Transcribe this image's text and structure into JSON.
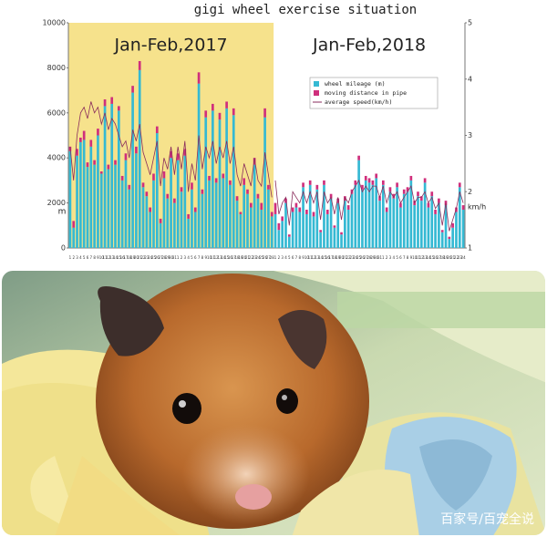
{
  "chart_data": [
    {
      "type": "bar",
      "title": "gigi wheel exercise situation",
      "subtitle": "Jan-Feb,2017",
      "background": "#f6e28c",
      "stacked": true,
      "grid": false,
      "ylabel": "m",
      "ylim": [
        0,
        10000
      ],
      "yticks": [
        0,
        2000,
        4000,
        6000,
        8000,
        10000
      ],
      "y2lim": [
        1,
        5
      ],
      "categories": [
        "1",
        "2",
        "3",
        "4",
        "5",
        "6",
        "7",
        "8",
        "9",
        "10",
        "11",
        "12",
        "13",
        "14",
        "15",
        "16",
        "17",
        "18",
        "19",
        "20",
        "21",
        "22",
        "23",
        "24",
        "25",
        "26",
        "27",
        "28",
        "29",
        "30",
        "31",
        "1",
        "2",
        "3",
        "4",
        "5",
        "6",
        "7",
        "8",
        "9",
        "10",
        "11",
        "12",
        "13",
        "14",
        "15",
        "16",
        "17",
        "18",
        "19",
        "20",
        "21",
        "22",
        "23",
        "24",
        "25",
        "26",
        "27",
        "28"
      ],
      "series": [
        {
          "name": "wheel mileage (m)",
          "color": "#35b9d3",
          "values": [
            4300,
            900,
            4100,
            4700,
            4800,
            3600,
            4500,
            3700,
            5000,
            3300,
            6300,
            3500,
            6400,
            3700,
            6100,
            3000,
            3900,
            2600,
            6900,
            4200,
            7900,
            2700,
            2300,
            1600,
            3000,
            5100,
            1100,
            3100,
            2200,
            4000,
            2000,
            3900,
            2500,
            4100,
            1300,
            2600,
            1600,
            7300,
            2400,
            5800,
            3000,
            6100,
            2900,
            5700,
            3100,
            6200,
            2800,
            5900,
            2100,
            1500,
            2800,
            2400,
            1800,
            3700,
            2200,
            1700,
            5800,
            2600,
            1400
          ]
        },
        {
          "name": "moving distance in pipe",
          "color": "#cf2f7c",
          "values": [
            200,
            300,
            300,
            200,
            400,
            200,
            300,
            200,
            300,
            100,
            300,
            200,
            300,
            200,
            200,
            200,
            300,
            200,
            300,
            300,
            400,
            200,
            200,
            200,
            300,
            300,
            200,
            300,
            200,
            300,
            200,
            300,
            200,
            300,
            200,
            300,
            200,
            500,
            200,
            300,
            200,
            300,
            200,
            300,
            200,
            300,
            200,
            300,
            200,
            100,
            300,
            200,
            200,
            300,
            200,
            300,
            400,
            200,
            200
          ]
        },
        {
          "name": "average speed(km/h)",
          "color": "#8a2d5c",
          "axis": "y2",
          "values": [
            2.8,
            2.2,
            3.0,
            3.4,
            3.5,
            3.3,
            3.6,
            3.4,
            3.5,
            3.2,
            3.4,
            3.1,
            3.3,
            3.2,
            3.0,
            2.8,
            2.9,
            2.6,
            3.1,
            2.9,
            3.2,
            2.7,
            2.5,
            2.3,
            2.6,
            2.9,
            2.1,
            2.6,
            2.4,
            2.8,
            2.3,
            2.8,
            2.4,
            2.9,
            2.0,
            2.5,
            2.2,
            3.0,
            2.4,
            2.8,
            2.6,
            2.9,
            2.5,
            2.8,
            2.6,
            2.9,
            2.5,
            2.8,
            2.3,
            2.1,
            2.5,
            2.3,
            2.1,
            2.6,
            2.2,
            2.1,
            2.7,
            2.3,
            1.9
          ]
        }
      ]
    },
    {
      "type": "bar",
      "subtitle": "Jan-Feb,2018",
      "stacked": true,
      "grid": false,
      "y2label": "km/h",
      "ylim": [
        0,
        10000
      ],
      "y2lim": [
        1,
        5
      ],
      "y2ticks": [
        1,
        2,
        3,
        4,
        5
      ],
      "legend": "upper right",
      "categories": [
        "1",
        "2",
        "3",
        "4",
        "5",
        "6",
        "7",
        "8",
        "9",
        "10",
        "11",
        "12",
        "13",
        "14",
        "15",
        "16",
        "17",
        "18",
        "19",
        "20",
        "21",
        "22",
        "23",
        "24",
        "25",
        "26",
        "27",
        "28",
        "29",
        "30",
        "31",
        "1",
        "2",
        "3",
        "4",
        "5",
        "6",
        "7",
        "8",
        "9",
        "10",
        "11",
        "12",
        "13",
        "14",
        "15",
        "16",
        "17",
        "18",
        "19",
        "20",
        "21",
        "22",
        "23",
        "24"
      ],
      "series": [
        {
          "name": "wheel mileage (m)",
          "color": "#35b9d3",
          "values": [
            1500,
            800,
            1200,
            2000,
            500,
            1600,
            1800,
            1600,
            2700,
            1500,
            2800,
            1400,
            2600,
            700,
            2800,
            1500,
            2200,
            900,
            2000,
            600,
            2100,
            1700,
            2400,
            2800,
            3900,
            2600,
            3000,
            2900,
            2800,
            3100,
            2100,
            2800,
            1600,
            2500,
            2200,
            2700,
            1800,
            2400,
            2500,
            3000,
            1900,
            2300,
            2100,
            2900,
            1800,
            2300,
            1500,
            2000,
            700,
            1900,
            400,
            900,
            1600,
            2700,
            1700
          ]
        },
        {
          "name": "moving distance in pipe",
          "color": "#cf2f7c",
          "values": [
            500,
            300,
            200,
            200,
            100,
            200,
            200,
            200,
            200,
            200,
            200,
            200,
            200,
            100,
            200,
            200,
            200,
            100,
            200,
            100,
            200,
            200,
            200,
            200,
            200,
            200,
            200,
            200,
            200,
            200,
            200,
            200,
            200,
            200,
            200,
            200,
            200,
            200,
            200,
            200,
            200,
            200,
            200,
            200,
            200,
            200,
            200,
            200,
            100,
            200,
            100,
            200,
            200,
            200,
            200
          ]
        },
        {
          "name": "average speed(km/h)",
          "color": "#8a2d5c",
          "axis": "y2",
          "values": [
            2.2,
            1.6,
            1.8,
            1.9,
            1.4,
            2.0,
            1.9,
            1.8,
            2.0,
            1.8,
            2.0,
            1.8,
            2.0,
            1.5,
            2.0,
            1.8,
            1.9,
            1.6,
            1.9,
            1.5,
            1.9,
            1.8,
            2.0,
            2.1,
            2.2,
            2.0,
            2.1,
            2.0,
            2.1,
            2.1,
            1.9,
            2.1,
            1.8,
            2.0,
            1.9,
            2.0,
            1.8,
            1.9,
            2.0,
            2.1,
            1.8,
            1.9,
            1.9,
            2.0,
            1.8,
            1.9,
            1.7,
            1.8,
            1.4,
            1.8,
            1.3,
            1.5,
            1.7,
            2.0,
            1.8
          ]
        }
      ]
    }
  ],
  "watermark": "百家号/百宠全说"
}
